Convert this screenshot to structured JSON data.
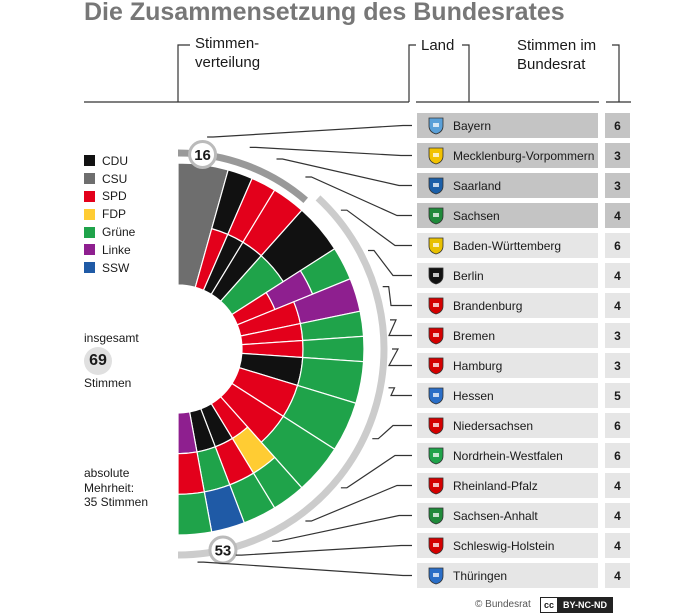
{
  "title": "Die Zusammensetzung des Bundesrates",
  "headers": {
    "distribution_line1": "Stimmen-",
    "distribution_line2": "verteilung",
    "state": "Land",
    "votes_line1": "Stimmen im",
    "votes_line2": "Bundesrat"
  },
  "legend": [
    {
      "label": "CDU",
      "color": "#111111"
    },
    {
      "label": "CSU",
      "color": "#6e6e6e"
    },
    {
      "label": "SPD",
      "color": "#e3001b"
    },
    {
      "label": "FDP",
      "color": "#ffcc33"
    },
    {
      "label": "Grüne",
      "color": "#1fa34a"
    },
    {
      "label": "Linke",
      "color": "#8e1f8f"
    },
    {
      "label": "SSW",
      "color": "#1f5aa6"
    }
  ],
  "total": {
    "label": "insgesamt",
    "value": "69",
    "unit": "Stimmen"
  },
  "majority": {
    "line1": "absolute",
    "line2": "Mehrheit:",
    "line3": "35 Stimmen"
  },
  "bracket_labels": {
    "government": "16",
    "opposition": "53"
  },
  "states": [
    {
      "name": "Bayern",
      "votes": "6",
      "group": "gov",
      "coat": "#5aa0d8",
      "parties": [
        "CSU"
      ]
    },
    {
      "name": "Mecklenburg-Vorpommern",
      "votes": "3",
      "group": "gov",
      "coat": "#f2c200",
      "parties": [
        "SPD",
        "CDU"
      ]
    },
    {
      "name": "Saarland",
      "votes": "3",
      "group": "gov",
      "coat": "#1b5fa8",
      "parties": [
        "CDU",
        "SPD"
      ]
    },
    {
      "name": "Sachsen",
      "votes": "4",
      "group": "gov",
      "coat": "#1f8a3a",
      "parties": [
        "CDU",
        "SPD"
      ]
    },
    {
      "name": "Baden-Württemberg",
      "votes": "6",
      "group": "opp",
      "coat": "#e8c000",
      "parties": [
        "Grüne",
        "CDU"
      ]
    },
    {
      "name": "Berlin",
      "votes": "4",
      "group": "opp",
      "coat": "#111111",
      "parties": [
        "SPD",
        "Linke",
        "Grüne"
      ]
    },
    {
      "name": "Brandenburg",
      "votes": "4",
      "group": "opp",
      "coat": "#d40000",
      "parties": [
        "SPD",
        "Linke"
      ]
    },
    {
      "name": "Bremen",
      "votes": "3",
      "group": "opp",
      "coat": "#d40000",
      "parties": [
        "SPD",
        "Grüne"
      ]
    },
    {
      "name": "Hamburg",
      "votes": "3",
      "group": "opp",
      "coat": "#d40000",
      "parties": [
        "SPD",
        "Grüne"
      ]
    },
    {
      "name": "Hessen",
      "votes": "5",
      "group": "opp",
      "coat": "#2a6ec7",
      "parties": [
        "CDU",
        "Grüne"
      ]
    },
    {
      "name": "Niedersachsen",
      "votes": "6",
      "group": "opp",
      "coat": "#d40000",
      "parties": [
        "SPD",
        "Grüne"
      ]
    },
    {
      "name": "Nordrhein-Westfalen",
      "votes": "6",
      "group": "opp",
      "coat": "#1fa34a",
      "parties": [
        "SPD",
        "Grüne"
      ]
    },
    {
      "name": "Rheinland-Pfalz",
      "votes": "4",
      "group": "opp",
      "coat": "#d40000",
      "parties": [
        "SPD",
        "FDP",
        "Grüne"
      ]
    },
    {
      "name": "Sachsen-Anhalt",
      "votes": "4",
      "group": "opp",
      "coat": "#1f8a3a",
      "parties": [
        "CDU",
        "SPD",
        "Grüne"
      ]
    },
    {
      "name": "Schleswig-Holstein",
      "votes": "4",
      "group": "opp",
      "coat": "#d40000",
      "parties": [
        "CDU",
        "Grüne",
        "SSW"
      ]
    },
    {
      "name": "Thüringen",
      "votes": "4",
      "group": "opp",
      "coat": "#2a6ec7",
      "parties": [
        "Linke",
        "SPD",
        "Grüne"
      ]
    }
  ],
  "credit": "© Bundesrat",
  "license": {
    "cc": "cc",
    "text": "BY-NC-ND"
  }
}
